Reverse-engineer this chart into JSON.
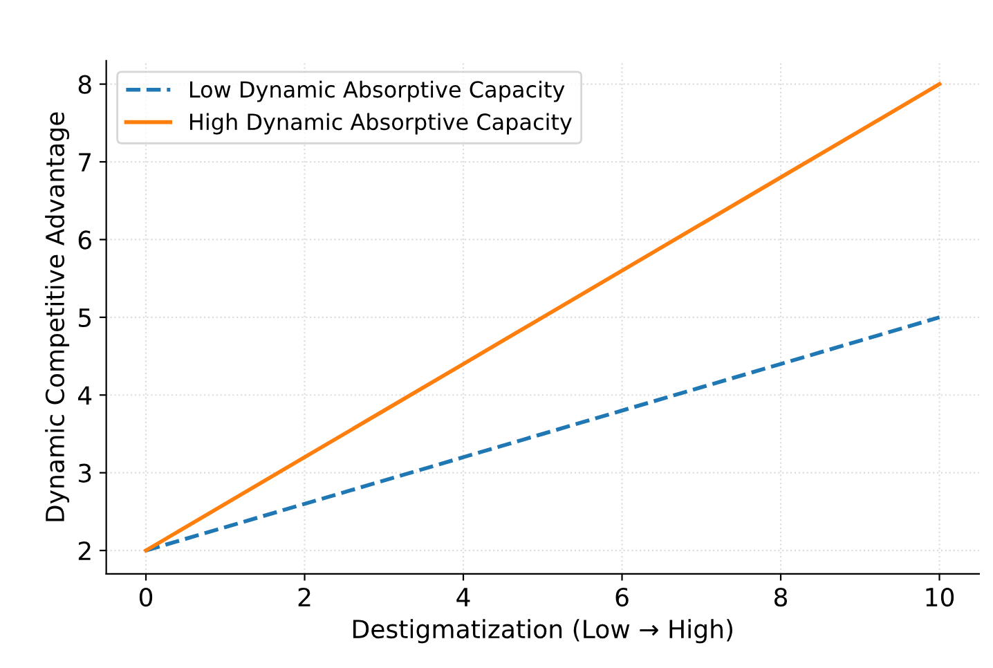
{
  "chart_data": {
    "type": "line",
    "xlabel": "Destigmatization (Low → High)",
    "ylabel": "Dynamic Competitive Advantage",
    "x": [
      0,
      1,
      2,
      3,
      4,
      5,
      6,
      7,
      8,
      9,
      10
    ],
    "series": [
      {
        "name": "Low Dynamic Absorptive Capacity",
        "color": "#1f77b4",
        "line_style": "dashed",
        "values": [
          2,
          2.3,
          2.6,
          2.9,
          3.2,
          3.5,
          3.8,
          4.1,
          4.4,
          4.7,
          5
        ]
      },
      {
        "name": "High Dynamic Absorptive Capacity",
        "color": "#ff7f0e",
        "line_style": "solid",
        "values": [
          2,
          2.6,
          3.2,
          3.8,
          4.4,
          5,
          5.6,
          6.2,
          6.8,
          7.4,
          8
        ]
      }
    ],
    "xlim": [
      -0.5,
      10.5
    ],
    "ylim": [
      1.7,
      8.3
    ],
    "xticks": [
      0,
      2,
      4,
      6,
      8,
      10
    ],
    "yticks": [
      2,
      3,
      4,
      5,
      6,
      7,
      8
    ],
    "grid": true,
    "legend": "top left",
    "marker": "none"
  }
}
